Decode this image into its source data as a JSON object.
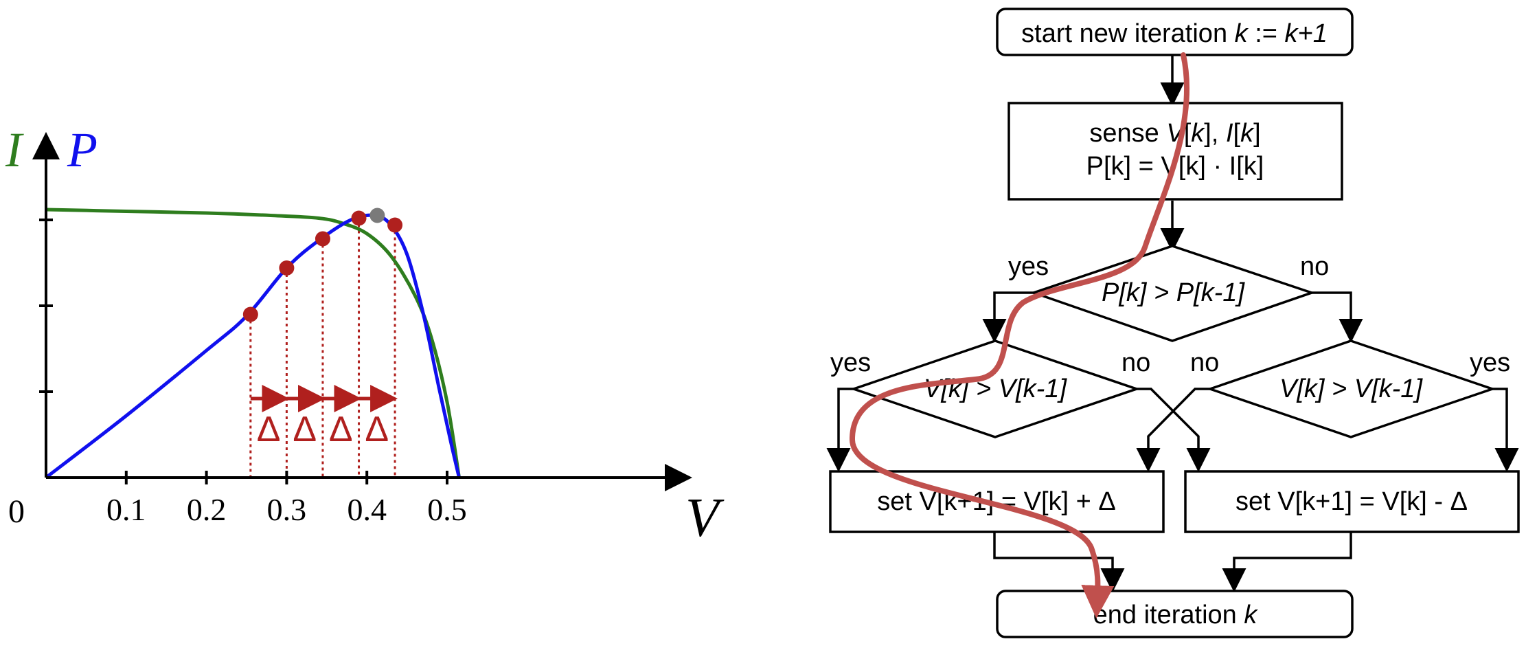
{
  "colors": {
    "axis": "#000000",
    "power_curve": "#1010ee",
    "current_curve": "#2e7d1e",
    "operating_point": "#b0201e",
    "mpp_point": "#7a7a7a",
    "delta_marker": "#b0201e",
    "path": "#c0504d"
  },
  "chart_data": {
    "type": "line",
    "title": "",
    "xlabel": "V",
    "ylabel_current": "I",
    "ylabel_power": "P",
    "origin_label": "0",
    "xlim": [
      0,
      0.55
    ],
    "x_ticks": [
      0.1,
      0.2,
      0.3,
      0.4,
      0.5
    ],
    "x_tick_labels": [
      "0.1",
      "0.2",
      "0.3",
      "0.4",
      "0.5"
    ],
    "ylim": [
      0,
      1.0
    ],
    "y_ticks": [
      0.25,
      0.5,
      0.75,
      0.93
    ],
    "series": [
      {
        "key": "current",
        "color": "#2e7d1e",
        "x": [
          0,
          0.1,
          0.2,
          0.28,
          0.34,
          0.37,
          0.4,
          0.43,
          0.46,
          0.48,
          0.5,
          0.515
        ],
        "y": [
          0.78,
          0.775,
          0.77,
          0.763,
          0.755,
          0.74,
          0.71,
          0.645,
          0.53,
          0.41,
          0.22,
          0.0
        ]
      },
      {
        "key": "power",
        "color": "#1010ee",
        "x": [
          0,
          0.1,
          0.2,
          0.25,
          0.3,
          0.34,
          0.38,
          0.41,
          0.43,
          0.45,
          0.47,
          0.49,
          0.505,
          0.515
        ],
        "y": [
          0.0,
          0.18,
          0.37,
          0.47,
          0.61,
          0.69,
          0.75,
          0.763,
          0.735,
          0.65,
          0.48,
          0.26,
          0.1,
          0.0
        ]
      }
    ],
    "operating_points": [
      {
        "x": 0.255,
        "y": 0.475
      },
      {
        "x": 0.3,
        "y": 0.61
      },
      {
        "x": 0.345,
        "y": 0.695
      },
      {
        "x": 0.39,
        "y": 0.755
      },
      {
        "x": 0.435,
        "y": 0.735
      }
    ],
    "mpp_point": {
      "x": 0.413,
      "y": 0.763
    },
    "delta_label": "Δ",
    "delta_steps": [
      {
        "from": 0.255,
        "to": 0.3
      },
      {
        "from": 0.3,
        "to": 0.345
      },
      {
        "from": 0.345,
        "to": 0.39
      },
      {
        "from": 0.39,
        "to": 0.435
      }
    ]
  },
  "flowchart": {
    "start_text": "start new iteration ",
    "start_k": "k",
    "start_assign": " := ",
    "start_k1": "k+1",
    "sense": {
      "line1_a": "sense ",
      "line1_b": "V",
      "line1_c": "[",
      "line1_d": "k",
      "line1_e": "], ",
      "line1_f": "I",
      "line1_g": "[",
      "line1_h": "k",
      "line1_i": "]",
      "line2": "P[k] = V[k] · I[k]"
    },
    "decision_power": "P[k] > P[k-1]",
    "decision_voltage_left": "V[k] > V[k-1]",
    "decision_voltage_right": "V[k] > V[k-1]",
    "label_yes_top": "yes",
    "label_no_top": "no",
    "label_yes_left": "yes",
    "label_no_left": "no",
    "label_no_right": "no",
    "label_yes_right": "yes",
    "action_increase": "set V[k+1] = V[k] + Δ",
    "action_decrease": "set V[k+1] = V[k] - Δ",
    "end_text": "end iteration ",
    "end_k": "k"
  }
}
